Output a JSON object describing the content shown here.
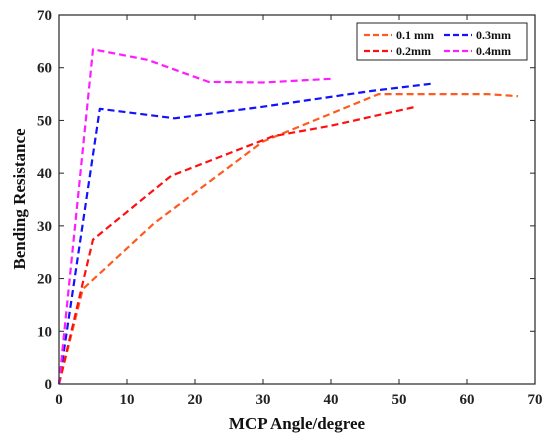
{
  "chart_data": {
    "type": "line",
    "xlabel": "MCP Angle/degree",
    "ylabel": "Bending Resistance",
    "xlim": [
      0,
      70
    ],
    "ylim": [
      0,
      70
    ],
    "xticks": [
      0,
      10,
      20,
      30,
      40,
      50,
      60,
      70
    ],
    "yticks": [
      0,
      10,
      20,
      30,
      40,
      50,
      60,
      70
    ],
    "grid": false,
    "legend_position": "top-right",
    "legend_columns": 2,
    "line_style": "dashed",
    "series": [
      {
        "name": "0.1 mm",
        "color": "#ff5a1f",
        "x": [
          0,
          3.5,
          14,
          30,
          47,
          52,
          58,
          63,
          67.5
        ],
        "y": [
          0,
          18,
          30.5,
          46,
          55,
          55,
          55,
          55,
          54.6
        ]
      },
      {
        "name": "0.3mm",
        "color": "#1212ff",
        "x": [
          0,
          6,
          17,
          30,
          46,
          55
        ],
        "y": [
          0,
          52.2,
          50.4,
          52.6,
          55.6,
          57
        ]
      },
      {
        "name": "0.2mm",
        "color": "#ff1010",
        "x": [
          0,
          5,
          16.5,
          31.5,
          40,
          52.5
        ],
        "y": [
          0,
          27.4,
          39.5,
          47,
          49,
          52.6
        ]
      },
      {
        "name": "0.4mm",
        "color": "#ff1cff",
        "x": [
          0,
          5,
          13,
          22,
          30,
          40
        ],
        "y": [
          0,
          63.5,
          61.5,
          57.3,
          57.2,
          57.9
        ]
      }
    ]
  }
}
